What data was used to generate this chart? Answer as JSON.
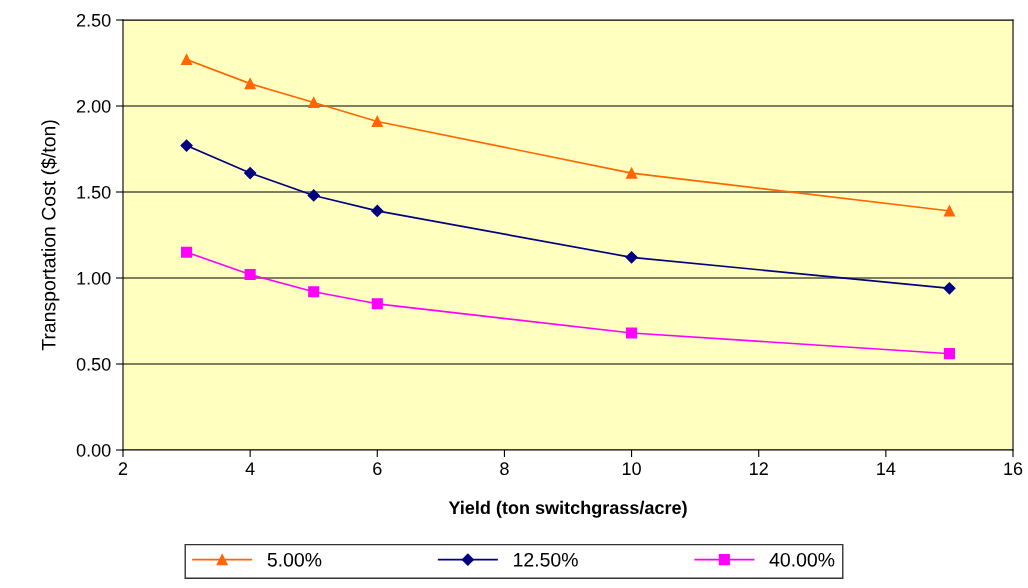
{
  "chart_data": {
    "type": "line",
    "xlabel": "Yield (ton switchgrass/acre)",
    "ylabel": "Transportation Cost ($/ton)",
    "x": [
      3,
      4,
      5,
      6,
      10,
      15
    ],
    "series": [
      {
        "name": "5.00%",
        "color": "#ff6600",
        "marker": "triangle",
        "values": [
          2.27,
          2.13,
          2.02,
          1.91,
          1.61,
          1.39
        ]
      },
      {
        "name": "12.50%",
        "color": "#000080",
        "marker": "diamond",
        "values": [
          1.77,
          1.61,
          1.48,
          1.39,
          1.12,
          0.94
        ]
      },
      {
        "name": "40.00%",
        "color": "#ff00ff",
        "marker": "square",
        "values": [
          1.15,
          1.02,
          0.92,
          0.85,
          0.68,
          0.56
        ]
      }
    ],
    "xlim": [
      2,
      16
    ],
    "xticks": [
      2,
      4,
      6,
      8,
      10,
      12,
      14,
      16
    ],
    "ylim": [
      0,
      2.5
    ],
    "yticks": [
      {
        "value": 0,
        "label": "0.00"
      },
      {
        "value": 0.5,
        "label": "0.50"
      },
      {
        "value": 1,
        "label": "1.00"
      },
      {
        "value": 1.5,
        "label": "1.50"
      },
      {
        "value": 2,
        "label": "2.00"
      },
      {
        "value": 2.5,
        "label": "2.50"
      }
    ],
    "grid": "y",
    "legend": "bottom",
    "line_style": "solid"
  }
}
